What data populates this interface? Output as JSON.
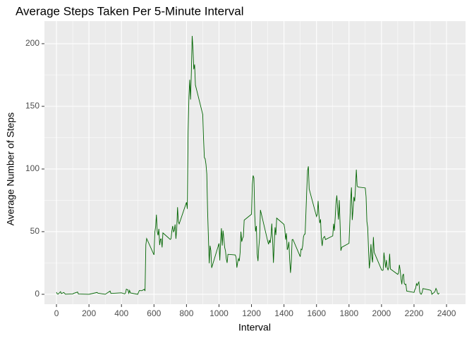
{
  "chart_data": {
    "type": "line",
    "title": "Average Steps Taken Per 5-Minute Interval",
    "x_label": "Interval",
    "y_label": "Average Number of Steps",
    "xlim": [
      -74,
      2517
    ],
    "ylim": [
      -7.9,
      218
    ],
    "xticks": [
      0,
      200,
      400,
      600,
      800,
      1000,
      1200,
      1400,
      1600,
      1800,
      2000,
      2200,
      2400
    ],
    "yticks": [
      0,
      50,
      100,
      150,
      200
    ],
    "grid": true,
    "series": [
      {
        "color": "#006400",
        "x": [
          0,
          5,
          10,
          25,
          30,
          45,
          55,
          100,
          105,
          130,
          135,
          200,
          250,
          255,
          300,
          330,
          335,
          400,
          420,
          425,
          430,
          440,
          445,
          450,
          455,
          500,
          505,
          510,
          525,
          540,
          545,
          550,
          555,
          600,
          605,
          610,
          615,
          620,
          625,
          630,
          635,
          640,
          645,
          650,
          655,
          700,
          705,
          710,
          715,
          720,
          725,
          730,
          735,
          740,
          745,
          750,
          755,
          800,
          805,
          810,
          815,
          820,
          825,
          830,
          835,
          840,
          845,
          850,
          855,
          900,
          905,
          910,
          915,
          920,
          925,
          930,
          935,
          940,
          945,
          950,
          955,
          1000,
          1005,
          1010,
          1015,
          1020,
          1025,
          1030,
          1035,
          1040,
          1045,
          1050,
          1055,
          1100,
          1105,
          1110,
          1115,
          1120,
          1125,
          1130,
          1135,
          1140,
          1145,
          1150,
          1155,
          1200,
          1205,
          1210,
          1215,
          1220,
          1225,
          1230,
          1235,
          1240,
          1245,
          1250,
          1255,
          1300,
          1305,
          1310,
          1315,
          1320,
          1325,
          1330,
          1335,
          1340,
          1345,
          1350,
          1355,
          1400,
          1405,
          1410,
          1415,
          1420,
          1425,
          1430,
          1435,
          1440,
          1445,
          1450,
          1455,
          1500,
          1505,
          1510,
          1515,
          1520,
          1525,
          1530,
          1535,
          1540,
          1545,
          1550,
          1555,
          1600,
          1605,
          1610,
          1615,
          1620,
          1625,
          1630,
          1635,
          1640,
          1645,
          1650,
          1655,
          1700,
          1705,
          1710,
          1715,
          1720,
          1725,
          1730,
          1735,
          1740,
          1745,
          1750,
          1755,
          1800,
          1805,
          1810,
          1815,
          1820,
          1825,
          1830,
          1835,
          1840,
          1845,
          1850,
          1855,
          1900,
          1905,
          1910,
          1915,
          1920,
          1925,
          1930,
          1935,
          1940,
          1945,
          1950,
          1955,
          2000,
          2005,
          2010,
          2015,
          2020,
          2025,
          2030,
          2035,
          2040,
          2045,
          2050,
          2055,
          2100,
          2105,
          2110,
          2115,
          2120,
          2125,
          2130,
          2135,
          2140,
          2145,
          2150,
          2155,
          2200,
          2205,
          2210,
          2215,
          2220,
          2225,
          2230,
          2235,
          2240,
          2245,
          2250,
          2255,
          2300,
          2305,
          2310,
          2315,
          2320,
          2325,
          2330,
          2335,
          2340,
          2345,
          2350,
          2355
        ],
        "values": [
          1.7,
          0.3,
          0.1,
          2.1,
          0.5,
          1.5,
          0.1,
          0.3,
          0.7,
          1.8,
          0.2,
          0,
          1.5,
          0.9,
          0,
          2.6,
          0.7,
          1.2,
          0.3,
          1.1,
          4.1,
          3.5,
          0.8,
          3.1,
          1.1,
          0,
          1.6,
          3,
          2.9,
          4,
          2.7,
          39.5,
          44.5,
          31.5,
          49.3,
          53.8,
          63.5,
          50,
          47.1,
          52.2,
          39.3,
          44,
          44.2,
          37.4,
          49,
          43.8,
          44.4,
          50.5,
          54.5,
          49.9,
          51,
          55.7,
          44.3,
          52.3,
          69.5,
          57.8,
          56.2,
          73.4,
          68.2,
          129.4,
          157.5,
          171.2,
          155.4,
          177.3,
          206.2,
          195.9,
          179.6,
          183.4,
          167,
          143.5,
          124,
          109.1,
          108.1,
          103.7,
          96,
          66.2,
          45.2,
          24.8,
          38.8,
          35,
          21.1,
          40.6,
          27,
          42.4,
          52.7,
          38.9,
          50.8,
          44.3,
          37.4,
          34.7,
          28.3,
          25.1,
          31.9,
          31.4,
          29.7,
          21.3,
          25.5,
          28.4,
          26.5,
          33.4,
          50,
          42,
          44.6,
          46,
          59.2,
          63.9,
          87.7,
          94.8,
          92.8,
          63.4,
          50.2,
          54.5,
          32.4,
          26.5,
          37.7,
          45.1,
          67.3,
          42.3,
          39.9,
          43.3,
          41,
          46.2,
          56.4,
          42.8,
          25.1,
          40,
          53.5,
          47.3,
          60.8,
          55.8,
          52,
          43.6,
          48.7,
          35.5,
          37.5,
          41.8,
          27.5,
          17.1,
          26.1,
          43.6,
          43.8,
          30,
          36.1,
          35.5,
          38.8,
          46,
          47.8,
          48.1,
          65.3,
          82.9,
          98.7,
          102.1,
          84,
          62.1,
          64.1,
          74.5,
          63.2,
          56.9,
          59.8,
          43.9,
          38.6,
          44.7,
          45.5,
          46.2,
          43.7,
          46.6,
          56.3,
          50.7,
          61.2,
          72.7,
          78.9,
          68.9,
          59.7,
          75.1,
          56.5,
          34.8,
          37.5,
          40.7,
          58,
          74.7,
          85.3,
          59.3,
          67.8,
          77.7,
          74.2,
          85.3,
          99.5,
          86.6,
          85.6,
          84.9,
          77.8,
          58,
          53.4,
          36.3,
          20.7,
          27.4,
          40,
          30.2,
          25.5,
          45.7,
          33.5,
          19.6,
          19,
          19.3,
          33.3,
          26.8,
          21.2,
          27.3,
          21.3,
          19.5,
          21.3,
          32.3,
          20.2,
          15.9,
          17.2,
          23.5,
          19.2,
          12.5,
          8,
          14.7,
          16.3,
          8.7,
          7.8,
          8.1,
          2.6,
          1.5,
          3.7,
          4.8,
          8.5,
          7.1,
          8.7,
          9.8,
          2.2,
          0.3,
          0.1,
          1.6,
          4.6,
          3.3,
          2.8,
          0,
          0.8,
          1,
          1.6,
          2.6,
          4.7,
          3.3,
          0.6,
          0.2,
          1.1
        ]
      }
    ]
  }
}
